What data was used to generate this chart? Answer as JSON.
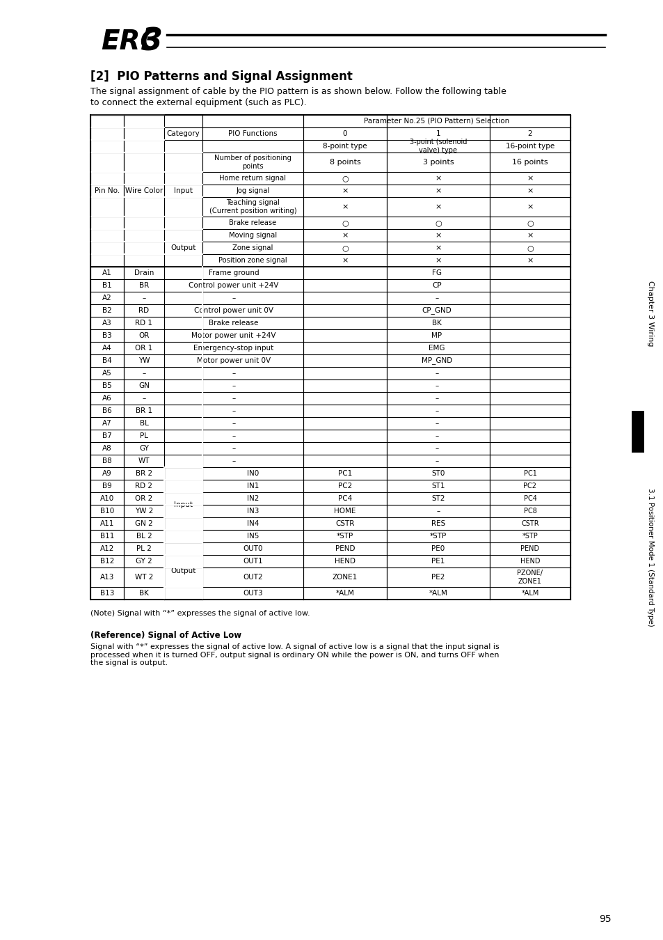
{
  "title": "[2]  PIO Patterns and Signal Assignment",
  "subtitle": "The signal assignment of cable by the PIO pattern is as shown below. Follow the following table\nto connect the external equipment (such as PLC).",
  "logo_text": "ERC3",
  "note1": "(Note) Signal with “*” expresses the signal of active low.",
  "note2": "(Reference) Signal of Active Low",
  "note3": "Signal with “*” expresses the signal of active low. A signal of active low is a signal that the input signal is\nprocessed when it is turned OFF, output signal is ordinary ON while the power is ON, and turns OFF when\nthe signal is output.",
  "sidebar_top": "Chapter 3 Wiring",
  "sidebar_bottom": "3.1 Positioner Mode 1 (Standard Type)",
  "page_num": "95",
  "bg_color": "#ffffff",
  "text_color": "#000000",
  "table_border_color": "#000000"
}
